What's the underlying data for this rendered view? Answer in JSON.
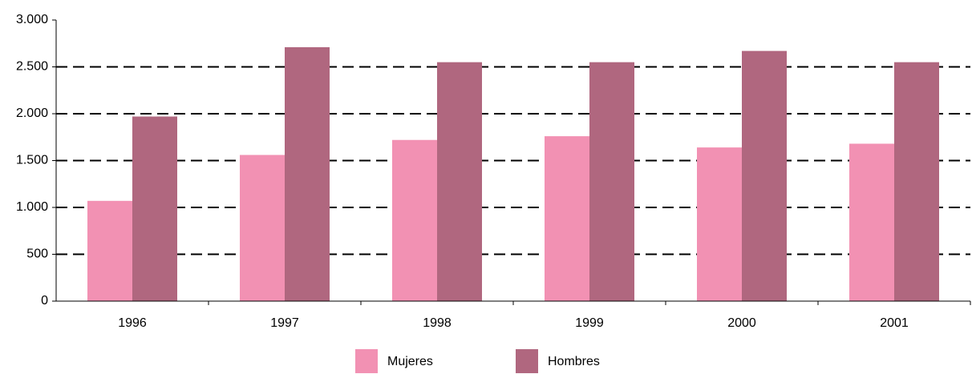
{
  "chart_data": {
    "type": "bar",
    "categories": [
      "1996",
      "1997",
      "1998",
      "1999",
      "2000",
      "2001"
    ],
    "series": [
      {
        "name": "Mujeres",
        "color": "#f291b3",
        "values": [
          1070,
          1560,
          1720,
          1760,
          1640,
          1680
        ]
      },
      {
        "name": "Hombres",
        "color": "#b0677f",
        "values": [
          1970,
          2710,
          2550,
          2550,
          2670,
          2550
        ]
      }
    ],
    "ylim": [
      0,
      3000
    ],
    "yticks": [
      0,
      500,
      {
        "value": 1000,
        "label": "1.000"
      },
      {
        "value": 1500,
        "label": "1.500"
      },
      {
        "value": 2000,
        "label": "2.000"
      },
      {
        "value": 2500,
        "label": "2.500"
      },
      {
        "value": 3000,
        "label": "3.000"
      }
    ],
    "grid": true
  }
}
